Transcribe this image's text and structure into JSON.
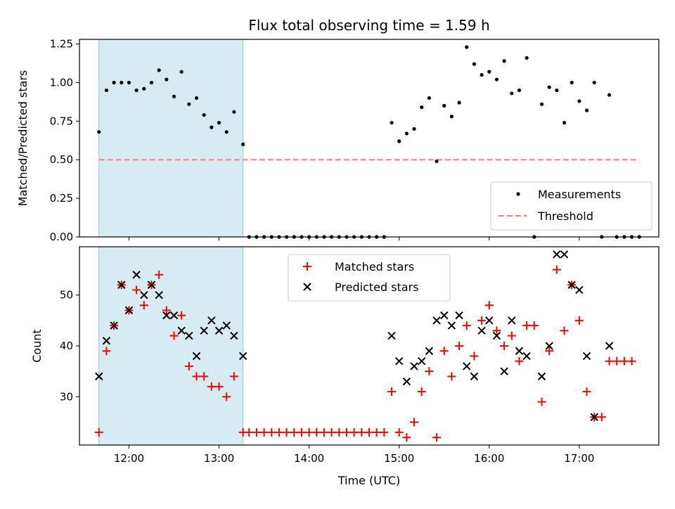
{
  "chart_data": {
    "type": "scatter",
    "title": "Flux total observing time = 1.59 h",
    "xlabel": "Time (UTC)",
    "xlim": [
      "11:27",
      "17:53"
    ],
    "xticks": [
      "12:00",
      "13:00",
      "14:00",
      "15:00",
      "16:00",
      "17:00"
    ],
    "shaded_interval": {
      "start": "11:40",
      "end": "13:16",
      "color": "#add8e6"
    },
    "panels": [
      {
        "id": "top",
        "ylabel": "Matched/Predicted stars",
        "ylim": [
          0,
          1.28
        ],
        "yticks": [
          "0.00",
          "0.25",
          "0.50",
          "0.75",
          "1.00",
          "1.25"
        ],
        "legend": {
          "position": "bottom-right",
          "entries": [
            "Measurements",
            "Threshold"
          ]
        },
        "series": [
          {
            "name": "Measurements",
            "marker": "dot",
            "color": "#000000",
            "points": [
              [
                "11:40",
                0.68
              ],
              [
                "11:45",
                0.95
              ],
              [
                "11:50",
                1.0
              ],
              [
                "11:55",
                1.0
              ],
              [
                "12:00",
                1.0
              ],
              [
                "12:05",
                0.95
              ],
              [
                "12:10",
                0.96
              ],
              [
                "12:15",
                1.0
              ],
              [
                "12:20",
                1.08
              ],
              [
                "12:25",
                1.02
              ],
              [
                "12:30",
                0.91
              ],
              [
                "12:35",
                1.07
              ],
              [
                "12:40",
                0.86
              ],
              [
                "12:45",
                0.9
              ],
              [
                "12:50",
                0.79
              ],
              [
                "12:55",
                0.71
              ],
              [
                "13:00",
                0.74
              ],
              [
                "13:05",
                0.68
              ],
              [
                "13:10",
                0.81
              ],
              [
                "13:16",
                0.6
              ],
              [
                "13:20",
                0
              ],
              [
                "13:25",
                0
              ],
              [
                "13:30",
                0
              ],
              [
                "13:35",
                0
              ],
              [
                "13:40",
                0
              ],
              [
                "13:45",
                0
              ],
              [
                "13:50",
                0
              ],
              [
                "13:55",
                0
              ],
              [
                "14:00",
                0
              ],
              [
                "14:05",
                0
              ],
              [
                "14:10",
                0
              ],
              [
                "14:15",
                0
              ],
              [
                "14:20",
                0
              ],
              [
                "14:25",
                0
              ],
              [
                "14:30",
                0
              ],
              [
                "14:35",
                0
              ],
              [
                "14:40",
                0
              ],
              [
                "14:45",
                0
              ],
              [
                "14:50",
                0
              ],
              [
                "14:55",
                0.74
              ],
              [
                "15:00",
                0.62
              ],
              [
                "15:05",
                0.67
              ],
              [
                "15:10",
                0.7
              ],
              [
                "15:15",
                0.84
              ],
              [
                "15:20",
                0.9
              ],
              [
                "15:25",
                0.49
              ],
              [
                "15:30",
                0.85
              ],
              [
                "15:35",
                0.78
              ],
              [
                "15:40",
                0.87
              ],
              [
                "15:45",
                1.23
              ],
              [
                "15:50",
                1.12
              ],
              [
                "15:55",
                1.05
              ],
              [
                "16:00",
                1.07
              ],
              [
                "16:05",
                1.02
              ],
              [
                "16:10",
                1.14
              ],
              [
                "16:15",
                0.93
              ],
              [
                "16:20",
                0.95
              ],
              [
                "16:25",
                1.16
              ],
              [
                "16:30",
                0
              ],
              [
                "16:35",
                0.86
              ],
              [
                "16:40",
                0.97
              ],
              [
                "16:45",
                0.95
              ],
              [
                "16:50",
                0.74
              ],
              [
                "16:55",
                1.0
              ],
              [
                "17:00",
                0.88
              ],
              [
                "17:05",
                0.82
              ],
              [
                "17:10",
                1.0
              ],
              [
                "17:15",
                0
              ],
              [
                "17:20",
                0.92
              ],
              [
                "17:25",
                0
              ],
              [
                "17:30",
                0
              ],
              [
                "17:35",
                0
              ],
              [
                "17:40",
                0
              ]
            ]
          },
          {
            "name": "Threshold",
            "marker": "dashed-line",
            "color": "#ff7f7f",
            "y": 0.5,
            "x_start": "11:40",
            "x_end": "17:40"
          }
        ]
      },
      {
        "id": "bottom",
        "ylabel": "Count",
        "ylim": [
          20.5,
          59.5
        ],
        "yticks": [
          "30",
          "40",
          "50"
        ],
        "legend": {
          "position": "upper-center",
          "entries": [
            "Matched stars",
            "Predicted stars"
          ]
        },
        "series": [
          {
            "name": "Matched stars",
            "marker": "plus",
            "color": "#ff0000",
            "points": [
              [
                "11:40",
                23
              ],
              [
                "11:45",
                39
              ],
              [
                "11:50",
                44
              ],
              [
                "11:55",
                52
              ],
              [
                "12:00",
                47
              ],
              [
                "12:05",
                51
              ],
              [
                "12:10",
                48
              ],
              [
                "12:15",
                52
              ],
              [
                "12:20",
                54
              ],
              [
                "12:25",
                47
              ],
              [
                "12:30",
                42
              ],
              [
                "12:35",
                46
              ],
              [
                "12:40",
                36
              ],
              [
                "12:45",
                34
              ],
              [
                "12:50",
                34
              ],
              [
                "12:55",
                32
              ],
              [
                "13:00",
                32
              ],
              [
                "13:05",
                30
              ],
              [
                "13:10",
                34
              ],
              [
                "13:16",
                23
              ],
              [
                "13:20",
                23
              ],
              [
                "13:25",
                23
              ],
              [
                "13:30",
                23
              ],
              [
                "13:35",
                23
              ],
              [
                "13:40",
                23
              ],
              [
                "13:45",
                23
              ],
              [
                "13:50",
                23
              ],
              [
                "13:55",
                23
              ],
              [
                "14:00",
                23
              ],
              [
                "14:05",
                23
              ],
              [
                "14:10",
                23
              ],
              [
                "14:15",
                23
              ],
              [
                "14:20",
                23
              ],
              [
                "14:25",
                23
              ],
              [
                "14:30",
                23
              ],
              [
                "14:35",
                23
              ],
              [
                "14:40",
                23
              ],
              [
                "14:45",
                23
              ],
              [
                "14:50",
                23
              ],
              [
                "14:55",
                31
              ],
              [
                "15:00",
                23
              ],
              [
                "15:05",
                22
              ],
              [
                "15:10",
                25
              ],
              [
                "15:15",
                31
              ],
              [
                "15:20",
                35
              ],
              [
                "15:25",
                22
              ],
              [
                "15:30",
                39
              ],
              [
                "15:35",
                34
              ],
              [
                "15:40",
                40
              ],
              [
                "15:45",
                44
              ],
              [
                "15:50",
                38
              ],
              [
                "15:55",
                45
              ],
              [
                "16:00",
                48
              ],
              [
                "16:05",
                43
              ],
              [
                "16:10",
                40
              ],
              [
                "16:15",
                42
              ],
              [
                "16:20",
                37
              ],
              [
                "16:25",
                44
              ],
              [
                "16:30",
                44
              ],
              [
                "16:35",
                29
              ],
              [
                "16:40",
                39
              ],
              [
                "16:45",
                55
              ],
              [
                "16:50",
                43
              ],
              [
                "16:55",
                52
              ],
              [
                "17:00",
                45
              ],
              [
                "17:05",
                31
              ],
              [
                "17:10",
                26
              ],
              [
                "17:15",
                26
              ],
              [
                "17:20",
                37
              ],
              [
                "17:25",
                37
              ],
              [
                "17:30",
                37
              ],
              [
                "17:35",
                37
              ]
            ]
          },
          {
            "name": "Predicted stars",
            "marker": "x",
            "color": "#000000",
            "points": [
              [
                "11:40",
                34
              ],
              [
                "11:45",
                41
              ],
              [
                "11:50",
                44
              ],
              [
                "11:55",
                52
              ],
              [
                "12:00",
                47
              ],
              [
                "12:05",
                54
              ],
              [
                "12:10",
                50
              ],
              [
                "12:15",
                52
              ],
              [
                "12:20",
                50
              ],
              [
                "12:25",
                46
              ],
              [
                "12:30",
                46
              ],
              [
                "12:35",
                43
              ],
              [
                "12:40",
                42
              ],
              [
                "12:45",
                38
              ],
              [
                "12:50",
                43
              ],
              [
                "12:55",
                45
              ],
              [
                "13:00",
                43
              ],
              [
                "13:05",
                44
              ],
              [
                "13:10",
                42
              ],
              [
                "13:16",
                38
              ],
              [
                "14:55",
                42
              ],
              [
                "15:00",
                37
              ],
              [
                "15:05",
                33
              ],
              [
                "15:10",
                36
              ],
              [
                "15:15",
                37
              ],
              [
                "15:20",
                39
              ],
              [
                "15:25",
                45
              ],
              [
                "15:30",
                46
              ],
              [
                "15:35",
                44
              ],
              [
                "15:40",
                46
              ],
              [
                "15:45",
                36
              ],
              [
                "15:50",
                34
              ],
              [
                "15:55",
                43
              ],
              [
                "16:00",
                45
              ],
              [
                "16:05",
                42
              ],
              [
                "16:10",
                35
              ],
              [
                "16:15",
                45
              ],
              [
                "16:20",
                39
              ],
              [
                "16:25",
                38
              ],
              [
                "16:35",
                34
              ],
              [
                "16:40",
                40
              ],
              [
                "16:45",
                58
              ],
              [
                "16:50",
                58
              ],
              [
                "16:55",
                52
              ],
              [
                "17:00",
                51
              ],
              [
                "17:05",
                38
              ],
              [
                "17:10",
                26
              ],
              [
                "17:20",
                40
              ]
            ]
          }
        ]
      }
    ]
  }
}
